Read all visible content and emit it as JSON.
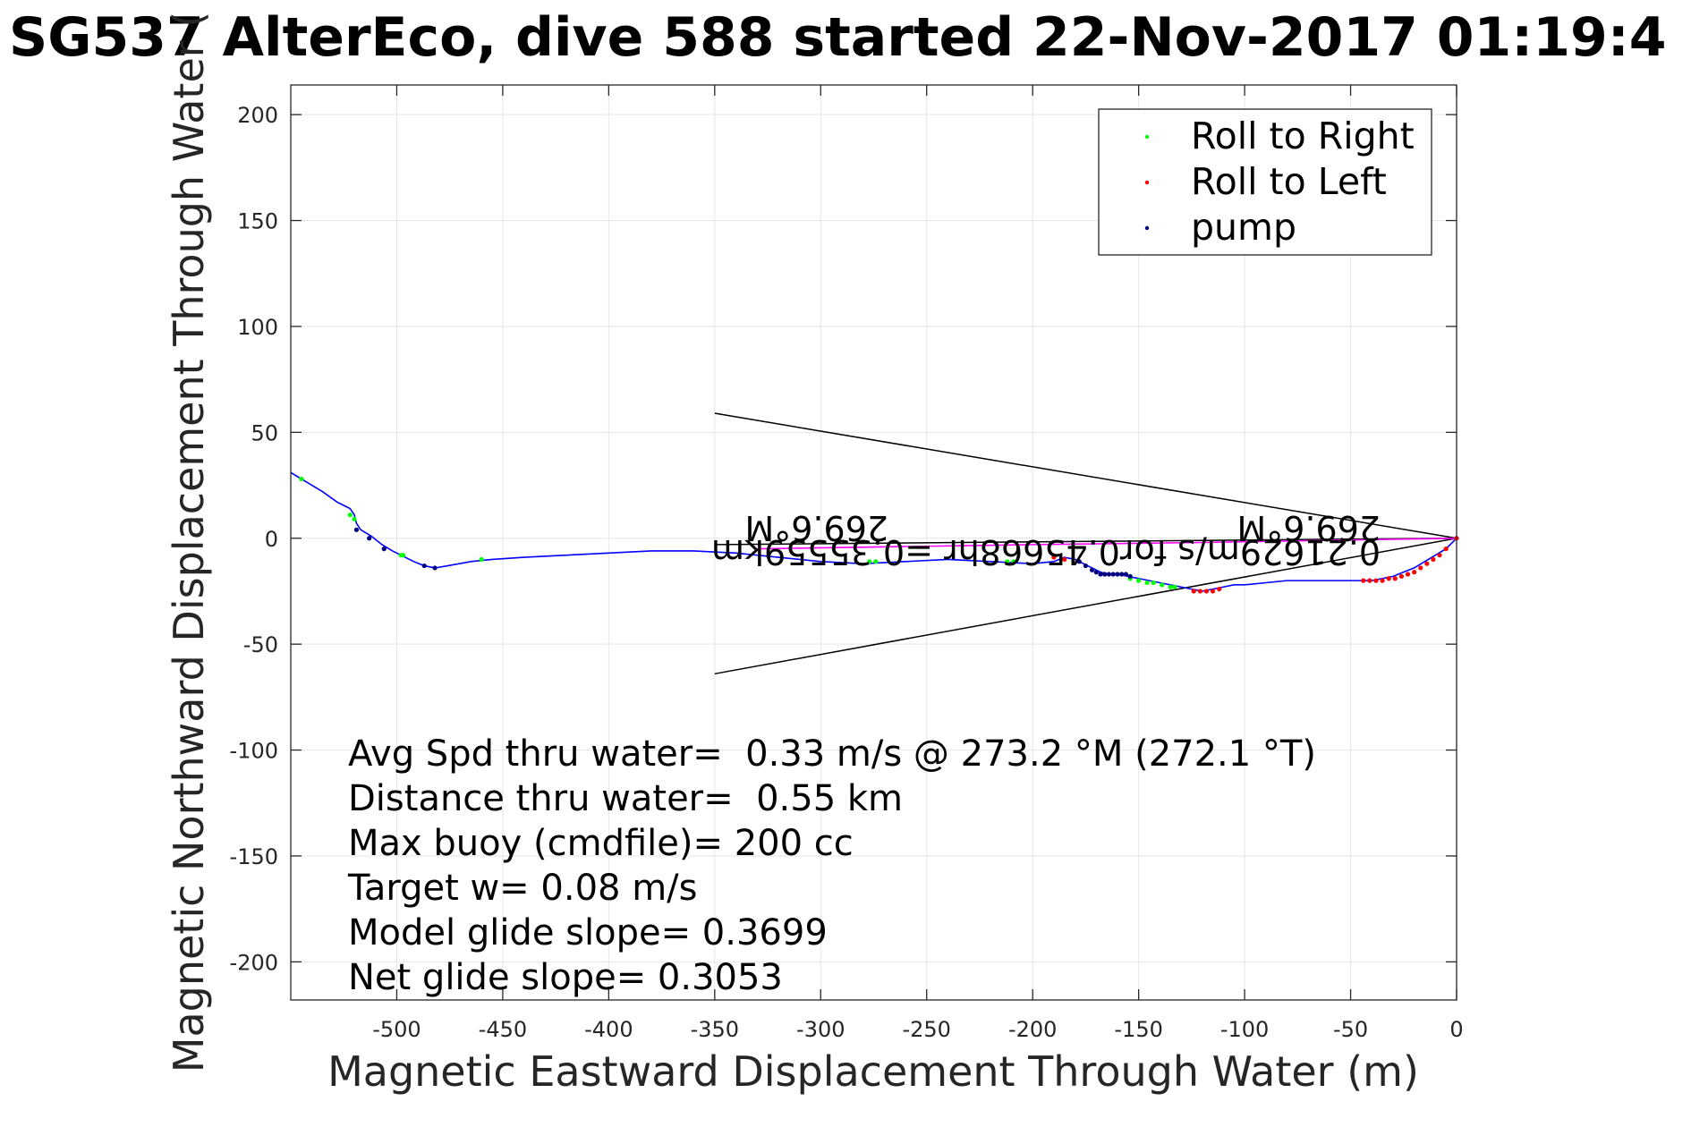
{
  "chart_data": {
    "type": "line",
    "title": "SG537 AlterEco, dive 588 started 22-Nov-2017 01:19:4",
    "xlabel": "Magnetic Eastward Displacement Through Water (m)",
    "ylabel": "Magnetic Northward Displacement Through Water (",
    "xlim": [
      -550,
      0
    ],
    "ylim": [
      -218,
      214
    ],
    "grid": true,
    "legend_position": "top-right",
    "xticks": [
      -500,
      -450,
      -400,
      -350,
      -300,
      -250,
      -200,
      -150,
      -100,
      -50,
      0
    ],
    "yticks": [
      200,
      150,
      100,
      50,
      0,
      -50,
      -100,
      -150,
      -200
    ],
    "legend": [
      {
        "label": "Roll to Right",
        "color": "#00ff00"
      },
      {
        "label": "Roll to Left",
        "color": "#ff0000"
      },
      {
        "label": "pump",
        "color": "#000080"
      }
    ],
    "track": {
      "color": "#0000ff",
      "x": [
        -550,
        -545,
        -535,
        -528,
        -522,
        -520,
        -519,
        -517,
        -512,
        -507,
        -502,
        -498,
        -492,
        -487,
        -482,
        -476,
        -465,
        -455,
        -440,
        -420,
        -400,
        -380,
        -360,
        -340,
        -320,
        -300,
        -280,
        -260,
        -240,
        -220,
        -200,
        -190,
        -185,
        -180,
        -176,
        -172,
        -168,
        -164,
        -160,
        -155,
        -150,
        -145,
        -140,
        -135,
        -130,
        -125,
        -120,
        -115,
        -110,
        -105,
        -100,
        -90,
        -80,
        -70,
        -60,
        -50,
        -45,
        -40,
        -35,
        -30,
        -25,
        -20,
        -15,
        -10,
        -5,
        0
      ],
      "y": [
        31,
        28,
        22,
        17,
        14,
        11,
        7,
        4,
        1,
        -3,
        -6,
        -8,
        -11,
        -13,
        -14,
        -13,
        -11,
        -10,
        -9,
        -8,
        -7,
        -6,
        -6,
        -7,
        -9,
        -11,
        -12,
        -11,
        -10,
        -11,
        -12,
        -11,
        -9,
        -10,
        -12,
        -14,
        -16,
        -17,
        -17,
        -18,
        -19,
        -20,
        -21,
        -22,
        -23,
        -24,
        -25,
        -24,
        -23,
        -22,
        -22,
        -21,
        -20,
        -20,
        -20,
        -20,
        -20,
        -20,
        -19,
        -18,
        -16,
        -14,
        -11,
        -8,
        -5,
        0
      ]
    },
    "surface_line": {
      "color": "#ff00ff",
      "x": [
        -330,
        -200,
        -120,
        -60,
        0
      ],
      "y": [
        -5,
        -3,
        -2,
        -1,
        0
      ]
    },
    "roll_right_points": {
      "x": [
        -545,
        -522,
        -520,
        -498,
        -497,
        -460,
        -277,
        -274,
        -212,
        -209,
        -154,
        -150,
        -146,
        -143,
        -139,
        -135,
        -133
      ],
      "y": [
        28,
        11,
        9,
        -8,
        -8,
        -10,
        -11,
        -11,
        -11,
        -11,
        -19,
        -20,
        -21,
        -21,
        -22,
        -23,
        -23
      ]
    },
    "roll_left_points": {
      "x": [
        -190,
        -185,
        -124,
        -121,
        -118,
        -115,
        -112,
        -44,
        -41,
        -38,
        -35,
        -32,
        -29,
        -26,
        -23,
        -20,
        -17,
        -14,
        -11,
        -8,
        -5,
        0
      ],
      "y": [
        -9,
        -10,
        -25,
        -25,
        -25,
        -25,
        -24,
        -20,
        -20,
        -20,
        -20,
        -19,
        -19,
        -18,
        -17,
        -16,
        -14,
        -12,
        -10,
        -8,
        -5,
        0
      ]
    },
    "pump_points": {
      "x": [
        -519,
        -513,
        -506,
        -487,
        -482,
        -178,
        -175,
        -172,
        -170,
        -168,
        -166,
        -164,
        -162,
        -160,
        -158,
        -156,
        -154
      ],
      "y": [
        4,
        0,
        -5,
        -13,
        -14,
        -11,
        -13,
        -15,
        -16,
        -17,
        -17,
        -17,
        -17,
        -17,
        -17,
        -17,
        -18
      ]
    },
    "current_lines": [
      {
        "x": [
          -350,
          0
        ],
        "y": [
          59,
          0
        ]
      },
      {
        "x": [
          -350,
          0
        ],
        "y": [
          -64,
          0
        ]
      },
      {
        "x": [
          -350,
          0
        ],
        "y": [
          -3,
          0
        ]
      }
    ],
    "annotations": {
      "rotated_labels": [
        "269.6°M",
        "269.6°M",
        "0.21629m/s for0.45668hr =0.35559km"
      ],
      "stats": [
        "Avg Spd thru water=  0.33 m/s @ 273.2 °M (272.1 °T)",
        "Distance thru water=  0.55 km",
        "Max buoy (cmdfile)= 200 cc",
        "Target w= 0.08 m/s",
        "Model glide slope= 0.3699",
        "Net glide slope= 0.3053"
      ]
    }
  }
}
